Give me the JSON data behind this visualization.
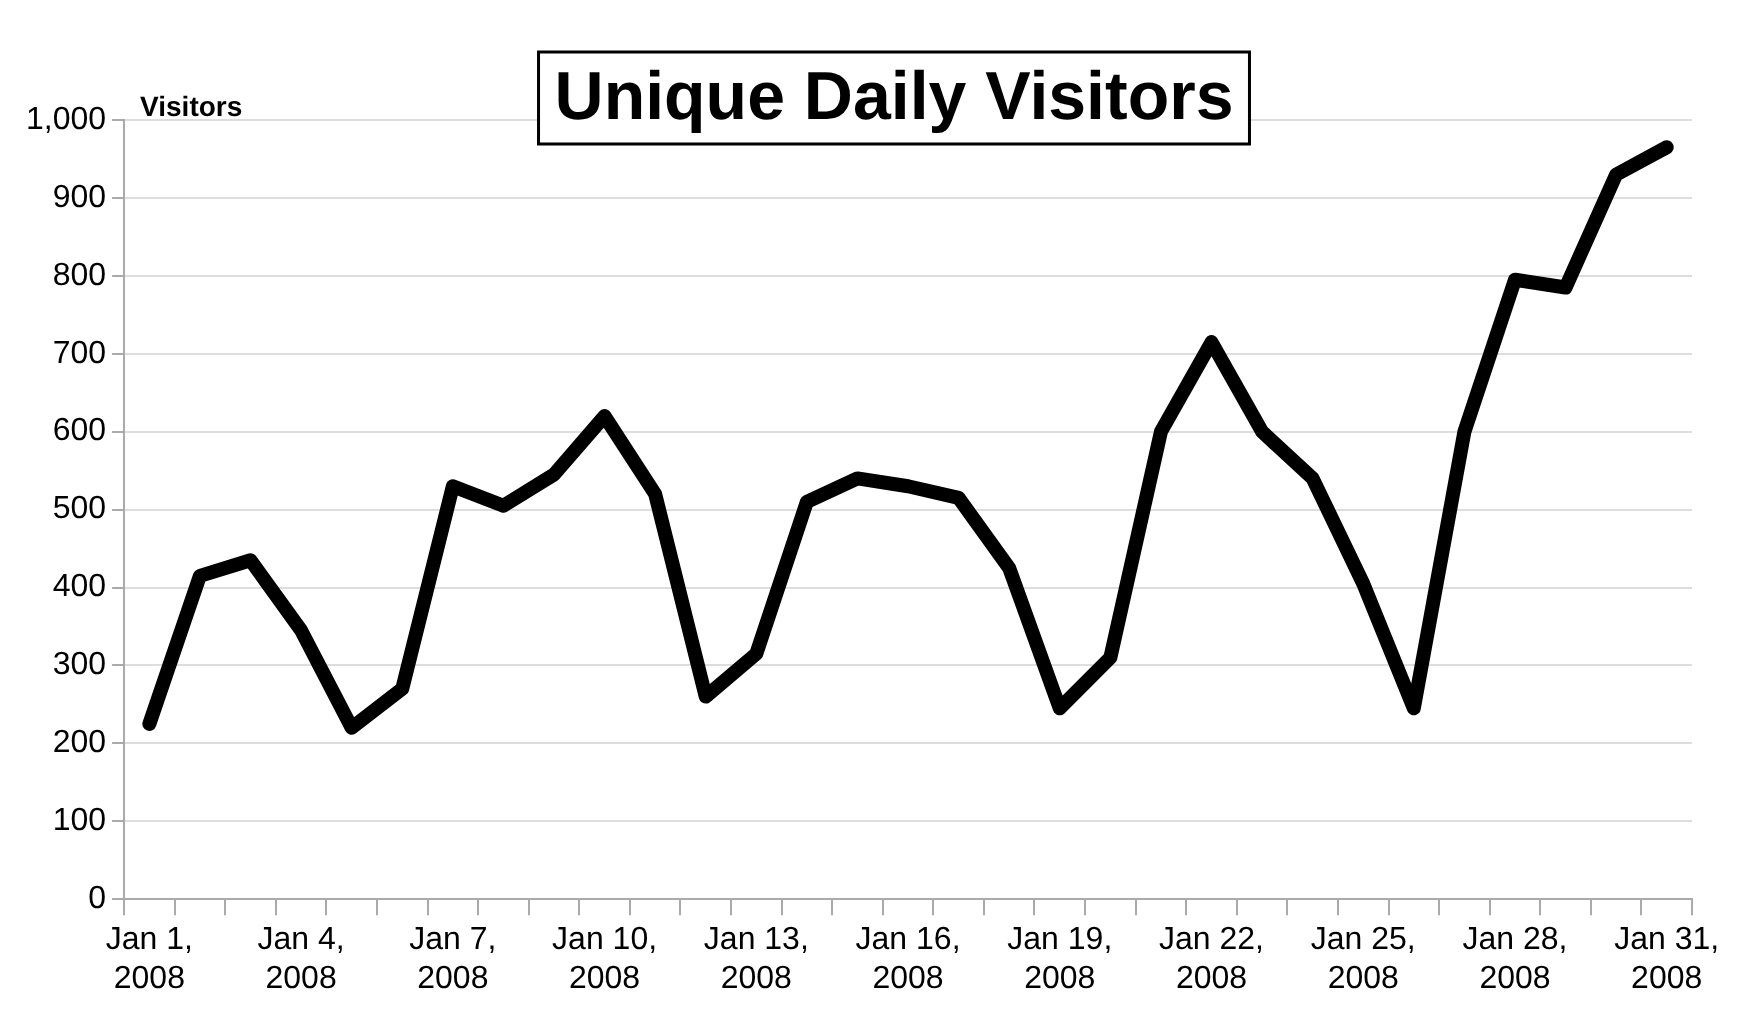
{
  "chart_data": {
    "type": "line",
    "title": "Unique Daily Visitors",
    "ylabel": "Visitors",
    "categories": [
      "Jan 1, 2008",
      null,
      null,
      "Jan 4, 2008",
      null,
      null,
      "Jan 7, 2008",
      null,
      null,
      "Jan 10, 2008",
      null,
      null,
      "Jan 13, 2008",
      null,
      null,
      "Jan 16, 2008",
      null,
      null,
      "Jan 19, 2008",
      null,
      null,
      "Jan 22, 2008",
      null,
      null,
      "Jan 25, 2008",
      null,
      null,
      "Jan 28, 2008",
      null,
      null,
      "Jan 31, 2008"
    ],
    "series": [
      {
        "color": "#000000",
        "values": [
          225,
          415,
          435,
          345,
          220,
          270,
          530,
          505,
          545,
          620,
          520,
          260,
          315,
          510,
          540,
          530,
          515,
          425,
          245,
          310,
          600,
          715,
          600,
          540,
          405,
          245,
          600,
          795,
          785,
          930,
          965
        ]
      }
    ],
    "ylim": [
      0,
      1000
    ],
    "yticks": [
      0,
      100,
      200,
      300,
      400,
      500,
      600,
      700,
      800,
      900,
      {
        "value": 1000,
        "label": "1,000"
      }
    ],
    "grid": "y",
    "legend": false,
    "marker": "none",
    "line_style": "solid"
  }
}
